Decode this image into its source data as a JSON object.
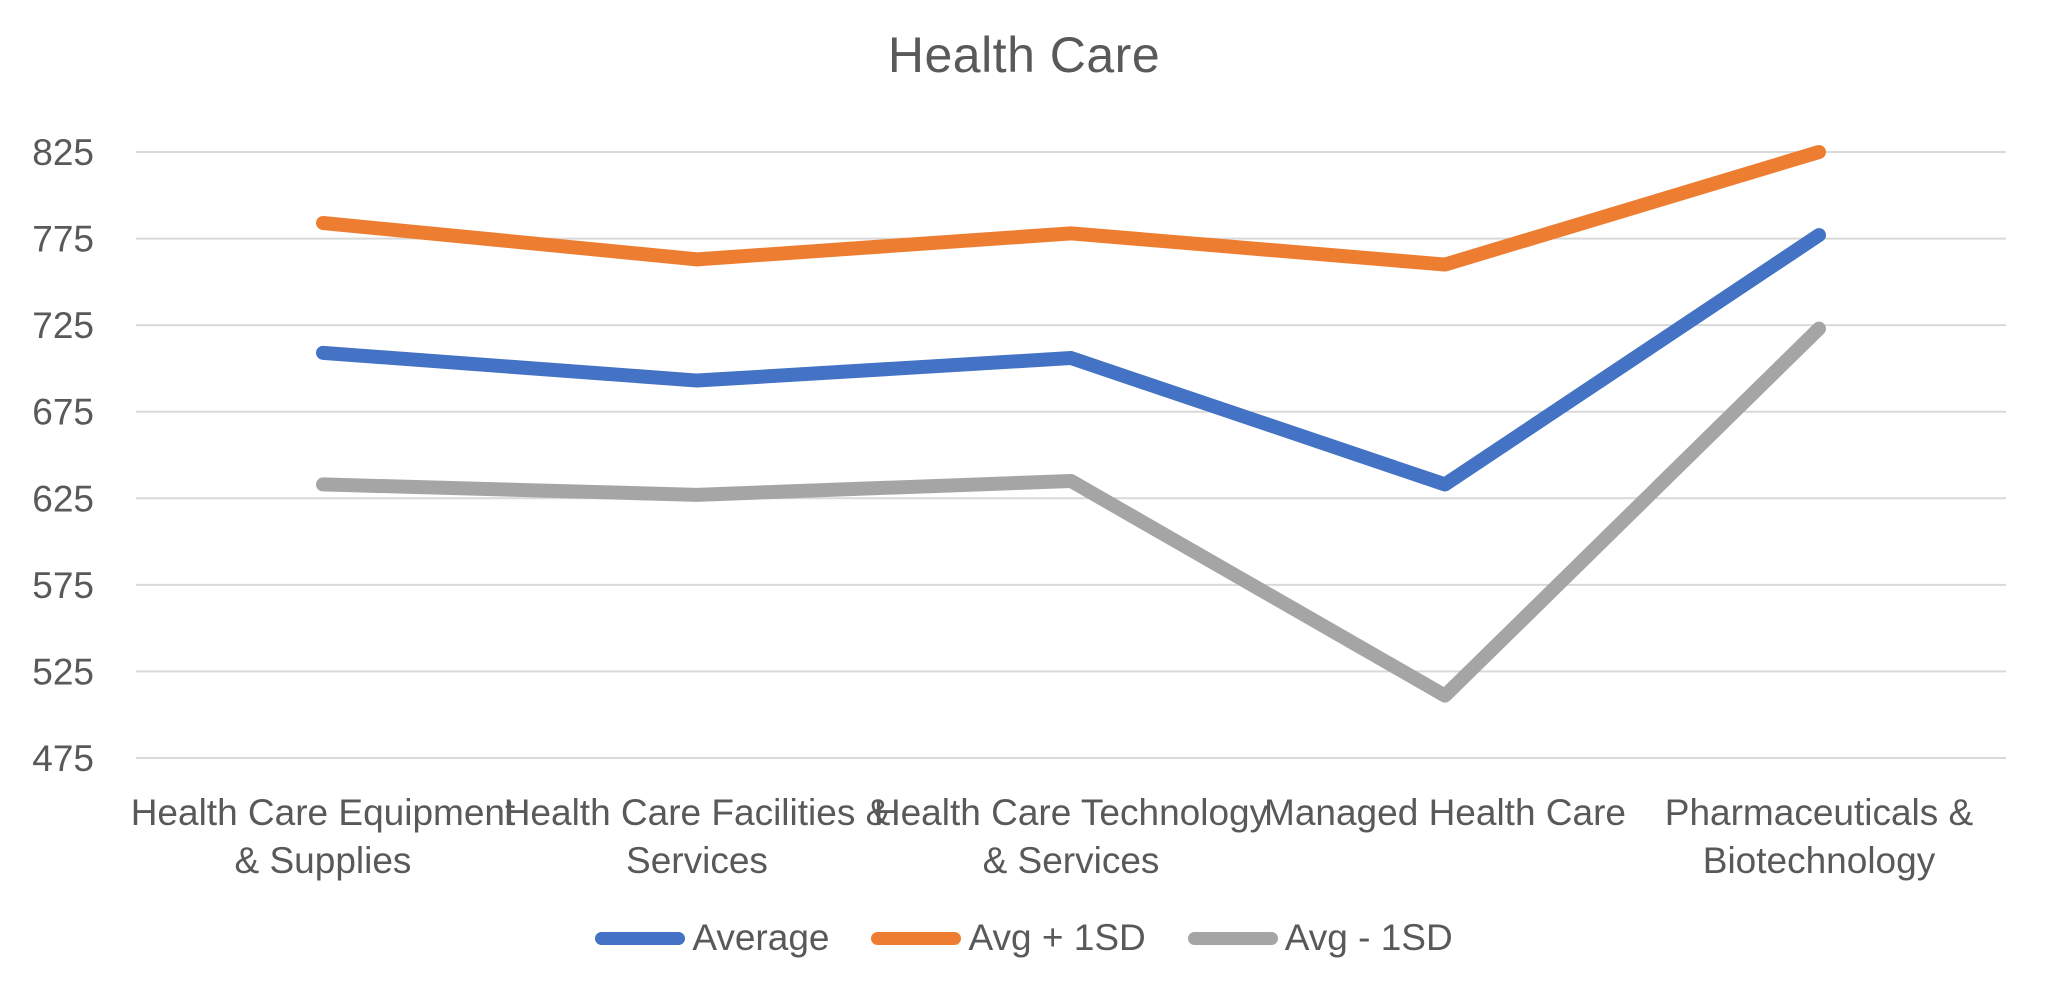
{
  "chart_data": {
    "type": "line",
    "title": "Health Care",
    "xlabel": "",
    "ylabel": "",
    "categories": [
      "Health Care Equipment & Supplies",
      "Health Care Facilities & Services",
      "Health Care Technology & Services",
      "Managed Health Care",
      "Pharmaceuticals & Biotechnology"
    ],
    "category_lines": [
      [
        "Health Care Equipment",
        "& Supplies"
      ],
      [
        "Health Care Facilities &",
        "Services"
      ],
      [
        "Health Care Technology",
        "& Services"
      ],
      [
        "Managed Health Care"
      ],
      [
        "Pharmaceuticals &",
        "Biotechnology"
      ]
    ],
    "series": [
      {
        "name": "Average",
        "color": "#4472C4",
        "values": [
          709,
          693,
          706,
          633,
          777
        ]
      },
      {
        "name": "Avg + 1SD",
        "color": "#ED7D31",
        "values": [
          784,
          763,
          778,
          760,
          825
        ]
      },
      {
        "name": "Avg - 1SD",
        "color": "#A5A5A5",
        "values": [
          633,
          627,
          635,
          511,
          723
        ]
      }
    ],
    "y_ticks": [
      475,
      525,
      575,
      625,
      675,
      725,
      775,
      825
    ],
    "ylim": [
      475,
      825
    ],
    "grid": "horizontal",
    "legend_position": "bottom",
    "grid_color": "#D9D9D9",
    "text_color": "#595959",
    "background": "#FFFFFF"
  }
}
